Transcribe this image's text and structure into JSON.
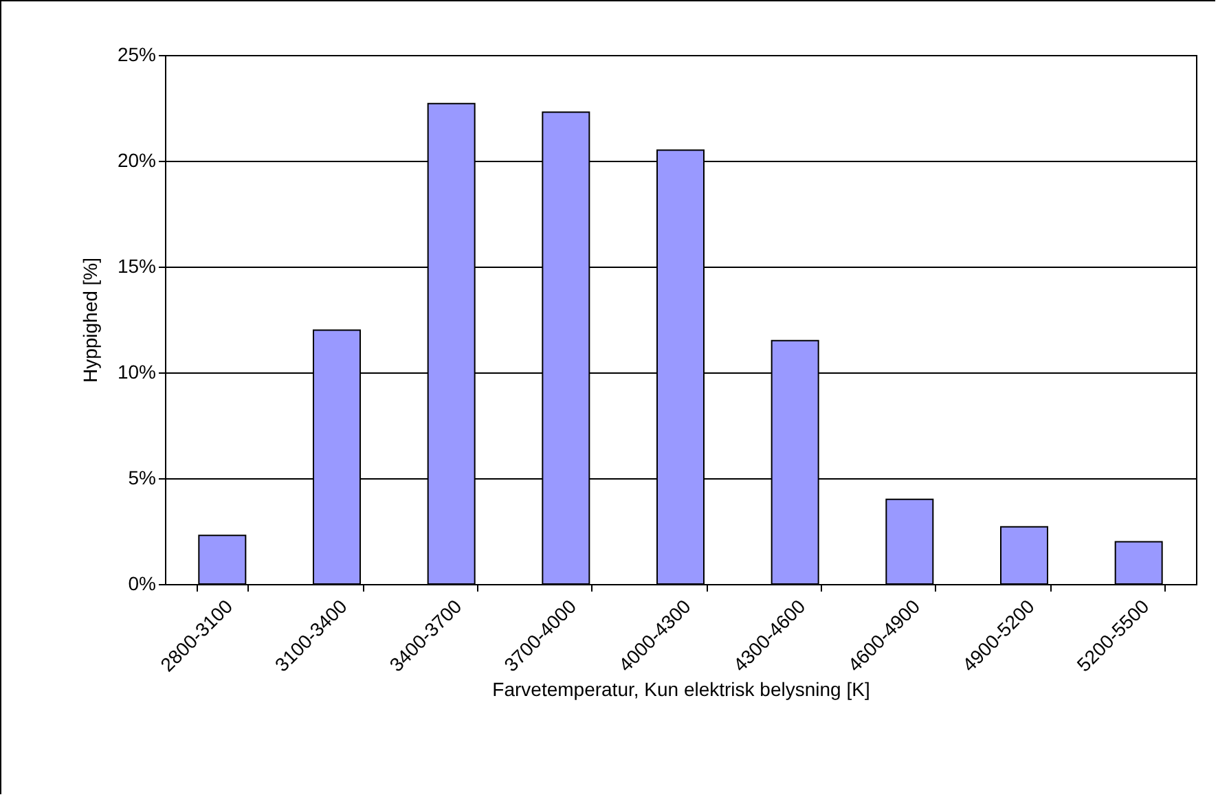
{
  "chart_data": {
    "type": "bar",
    "xlabel": "Farvetemperatur, Kun elektrisk belysning [K]",
    "ylabel": "Hyppighed [%]",
    "categories": [
      "2800-3100",
      "3100-3400",
      "3400-3700",
      "3700-4000",
      "4000-4300",
      "4300-4600",
      "4600-4900",
      "4900-5200",
      "5200-5500"
    ],
    "values": [
      2.3,
      12.0,
      22.7,
      22.3,
      20.5,
      11.5,
      4.0,
      2.7,
      2.0
    ],
    "color": "#9999ff",
    "ylim": [
      0,
      25
    ],
    "yticks": [
      {
        "value": 0,
        "label": "0%"
      },
      {
        "value": 5,
        "label": "5%"
      },
      {
        "value": 10,
        "label": "10%"
      },
      {
        "value": 15,
        "label": "15%"
      },
      {
        "value": 20,
        "label": "20%"
      },
      {
        "value": 25,
        "label": "25%"
      }
    ],
    "grid": "y"
  }
}
